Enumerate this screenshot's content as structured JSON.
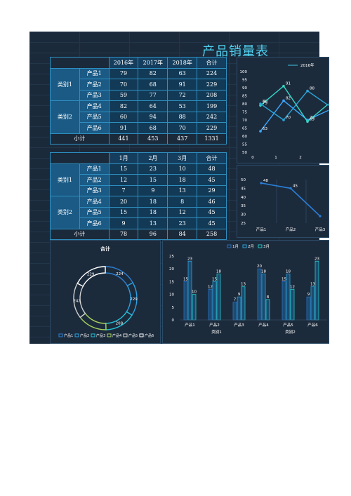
{
  "title": "产品销量表",
  "table1": {
    "headers": [
      "2016年",
      "2017年",
      "2018年",
      "合计"
    ],
    "groups": [
      {
        "name": "类别1",
        "rows": [
          {
            "product": "产品1",
            "values": [
              79,
              82,
              63,
              224
            ]
          },
          {
            "product": "产品2",
            "values": [
              70,
              68,
              91,
              229
            ]
          },
          {
            "product": "产品3",
            "values": [
              59,
              77,
              72,
              208
            ]
          }
        ]
      },
      {
        "name": "类别2",
        "rows": [
          {
            "product": "产品4",
            "values": [
              82,
              64,
              53,
              199
            ]
          },
          {
            "product": "产品5",
            "values": [
              60,
              94,
              88,
              242
            ]
          },
          {
            "product": "产品6",
            "values": [
              91,
              68,
              70,
              229
            ]
          }
        ]
      }
    ],
    "subtotal_label": "小计",
    "subtotal": [
      441,
      453,
      437,
      1331
    ]
  },
  "table2": {
    "headers": [
      "1月",
      "2月",
      "3月",
      "合计"
    ],
    "groups": [
      {
        "name": "类别1",
        "rows": [
          {
            "product": "产品1",
            "values": [
              15,
              23,
              10,
              48
            ]
          },
          {
            "product": "产品2",
            "values": [
              12,
              15,
              18,
              45
            ]
          },
          {
            "product": "产品3",
            "values": [
              7,
              9,
              13,
              29
            ]
          }
        ]
      },
      {
        "name": "类别2",
        "rows": [
          {
            "product": "产品4",
            "values": [
              20,
              18,
              8,
              46
            ]
          },
          {
            "product": "产品5",
            "values": [
              15,
              18,
              12,
              45
            ]
          },
          {
            "product": "产品6",
            "values": [
              9,
              13,
              23,
              45
            ]
          }
        ]
      }
    ],
    "subtotal_label": "小计",
    "subtotal": [
      78,
      96,
      84,
      258
    ]
  },
  "chart_data": [
    {
      "type": "line",
      "legend": [
        "2016年"
      ],
      "ylim": [
        50,
        100
      ],
      "yticks": [
        50,
        55,
        60,
        65,
        70,
        75,
        80,
        85,
        90,
        95,
        100
      ],
      "xticks": [
        "0",
        "1",
        "2"
      ],
      "series": [
        {
          "name": "2016年",
          "values": [
            63,
            82,
            70
          ]
        },
        {
          "name": "",
          "values": [
            79,
            91,
            69
          ]
        },
        {
          "name": "",
          "values": [
            80,
            70,
            88
          ]
        }
      ]
    },
    {
      "type": "line",
      "ylim": [
        25,
        50
      ],
      "yticks": [
        25,
        30,
        35,
        40,
        45,
        50
      ],
      "categories": [
        "产品1",
        "产品2",
        "产品3"
      ],
      "series": [
        {
          "name": "",
          "values": [
            48,
            45,
            29
          ]
        }
      ],
      "data_labels": [
        48,
        45
      ]
    },
    {
      "type": "pie",
      "title": "合计",
      "categories": [
        "产品1",
        "产品2",
        "产品3",
        "产品4",
        "产品5",
        "产品6"
      ],
      "values": [
        224,
        229,
        208,
        199,
        242,
        229
      ],
      "labels": [
        "224",
        "229",
        "208",
        "",
        "242",
        "229"
      ],
      "colors": [
        "#2a7fd0",
        "#2ba0e0",
        "#22c0d8",
        "#a8d45a",
        "#d0d0d0",
        "#ffffff"
      ]
    },
    {
      "type": "bar",
      "legend": [
        "1月",
        "2月",
        "3月"
      ],
      "ylim": [
        0,
        25
      ],
      "yticks": [
        0,
        5,
        10,
        15,
        20,
        25
      ],
      "categories": [
        "产品1",
        "产品2",
        "产品3",
        "产品4",
        "产品5",
        "产品6"
      ],
      "groups": [
        "类别1",
        "类别2"
      ],
      "series": [
        {
          "name": "1月",
          "values": [
            15,
            12,
            7,
            20,
            15,
            9
          ]
        },
        {
          "name": "2月",
          "values": [
            23,
            15,
            9,
            18,
            18,
            13
          ]
        },
        {
          "name": "3月",
          "values": [
            10,
            18,
            13,
            8,
            12,
            23
          ]
        }
      ],
      "colors": [
        "#2a6fc0",
        "#2ba0d8",
        "#25c6c6"
      ]
    }
  ]
}
